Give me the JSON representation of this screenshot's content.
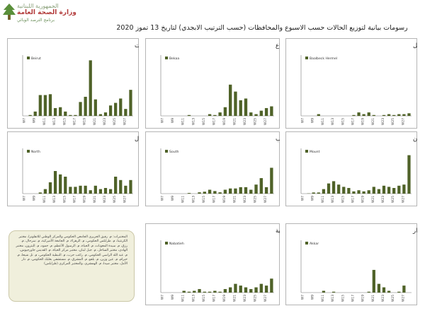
{
  "header": {
    "logo_line1": "الجمهورية اللبنانية",
    "logo_line2": "وزارة الصحة العامة",
    "logo_line3": "برنامج الترصد الوبائي"
  },
  "page_title": "رسومات بيانية لتوزيع الحالات حسب الاسبوع والمحافظات (حسب الترتيب الابجدي) لتاريخ 13 تموز 2020",
  "sources_note": "المختبرات: م. رفيق الحريري الجامعي الحكومي والمركز الوطني للانفلونزا، مختبر الكرنتينا، م. طرابلس الحكومي، م. الزهراء، م. الجامعة الأميركية، م. سرحال، م. رزق، م. سيدة المعونات، م. الحياة، م. الرسول الأعظم، م. حمود، م. البترون، مختبر الهادي، مختبر الساحل، م. جبل لبنان، مختبر مركز الحياة، م. القديس جاورجيوس، م. عبد الله الراسي الحكومي، م. راغب حرب، م. النبطية الحكومي، م. تل شيحا، م. حيرام، م. عين وزين، م. بلفو، م. المشرق، م. مستشفى بعلبك الحكومي، م. دار الأمل، مختبر صيدا، م. الهمشري، والمختبر المركزي (طرابلس)",
  "colors": {
    "bar": "#4f6228",
    "frame": "#b5b5b5"
  },
  "chart_data": [
    {
      "type": "bar",
      "title": "توزيع الحالات حسب الاسبوع في محافظة بيروت",
      "legend": "Beirut",
      "xlabel": "",
      "ylabel": "",
      "categories": [
        "W7",
        "W8",
        "W9",
        "W10",
        "W11",
        "W12",
        "W13",
        "W14",
        "W15",
        "W16",
        "W17",
        "W18",
        "W19",
        "W20",
        "W21",
        "W22",
        "W23",
        "W24",
        "W25",
        "W26",
        "W27",
        "W28"
      ],
      "x_tick_labels": [
        "W7",
        "W9",
        "W11",
        "W13",
        "W15",
        "W17",
        "W19",
        "W21",
        "W23",
        "W25",
        "W27"
      ],
      "ylim": [
        0,
        70
      ],
      "values": [
        0,
        1,
        5,
        24,
        24,
        25,
        9,
        10,
        5,
        1,
        1,
        16,
        22,
        64,
        19,
        2,
        4,
        12,
        15,
        20,
        8,
        30
      ]
    },
    {
      "type": "bar",
      "title": "توزيع الحالات حسب الاسبوع في محافظة البقاع",
      "legend": "Bekaa",
      "xlabel": "",
      "ylabel": "",
      "categories": [
        "W7",
        "W8",
        "W9",
        "W10",
        "W11",
        "W12",
        "W13",
        "W14",
        "W15",
        "W16",
        "W17",
        "W18",
        "W19",
        "W20",
        "W21",
        "W22",
        "W23",
        "W24",
        "W25",
        "W26",
        "W27",
        "W28"
      ],
      "x_tick_labels": [
        "W7",
        "W9",
        "W11",
        "W13",
        "W15",
        "W17",
        "W19",
        "W21",
        "W23",
        "W25",
        "W27"
      ],
      "ylim": [
        0,
        70
      ],
      "values": [
        0,
        0,
        0,
        0,
        0,
        1,
        0,
        0,
        0,
        2,
        1,
        4,
        10,
        36,
        28,
        18,
        20,
        4,
        2,
        6,
        9,
        11
      ]
    },
    {
      "type": "bar",
      "title": "توزيع الحالات حسب الاسبوع في محافظة بعلبك الهرمل",
      "legend": "Baalbeck Hermel",
      "xlabel": "",
      "ylabel": "",
      "categories": [
        "W7",
        "W8",
        "W9",
        "W10",
        "W11",
        "W12",
        "W13",
        "W14",
        "W15",
        "W16",
        "W17",
        "W18",
        "W19",
        "W20",
        "W21",
        "W22",
        "W23",
        "W24",
        "W25",
        "W26",
        "W27",
        "W28"
      ],
      "x_tick_labels": [
        "W7",
        "W9",
        "W11",
        "W13",
        "W15",
        "W17",
        "W19",
        "W21",
        "W23",
        "W25",
        "W27"
      ],
      "ylim": [
        0,
        70
      ],
      "values": [
        0,
        0,
        0,
        2,
        0,
        0,
        0,
        0,
        0,
        0,
        1,
        4,
        2,
        4,
        1,
        0,
        1,
        2,
        1,
        2,
        2,
        3
      ]
    },
    {
      "type": "bar",
      "title": "توزيع الحالات حسب الاسبوع في محافظة الشمال",
      "legend": "North",
      "xlabel": "",
      "ylabel": "",
      "categories": [
        "W7",
        "W8",
        "W9",
        "W10",
        "W11",
        "W12",
        "W13",
        "W14",
        "W15",
        "W16",
        "W17",
        "W18",
        "W19",
        "W20",
        "W21",
        "W22",
        "W23",
        "W24",
        "W25",
        "W26",
        "W27",
        "W28"
      ],
      "x_tick_labels": [
        "W7",
        "W9",
        "W11",
        "W13",
        "W15",
        "W17",
        "W19",
        "W21",
        "W23",
        "W25",
        "W27"
      ],
      "ylim": [
        0,
        80
      ],
      "values": [
        0,
        0,
        0,
        2,
        8,
        20,
        40,
        34,
        30,
        12,
        12,
        14,
        14,
        6,
        14,
        8,
        10,
        8,
        30,
        24,
        14,
        24
      ]
    },
    {
      "type": "bar",
      "title": "توزيع الحالات حسب الاسبوع في محافظة الجنوب",
      "legend": "South",
      "xlabel": "",
      "ylabel": "",
      "categories": [
        "W7",
        "W8",
        "W9",
        "W10",
        "W11",
        "W12",
        "W13",
        "W14",
        "W15",
        "W16",
        "W17",
        "W18",
        "W19",
        "W20",
        "W21",
        "W22",
        "W23",
        "W24",
        "W25",
        "W26",
        "W27",
        "W28"
      ],
      "x_tick_labels": [
        "W7",
        "W9",
        "W11",
        "W13",
        "W15",
        "W17",
        "W19",
        "W21",
        "W23",
        "W25",
        "W27"
      ],
      "ylim": [
        0,
        70
      ],
      "values": [
        0,
        0,
        0,
        0,
        0,
        1,
        0,
        2,
        3,
        6,
        4,
        2,
        6,
        8,
        8,
        10,
        10,
        6,
        14,
        24,
        10,
        40
      ]
    },
    {
      "type": "bar",
      "title": "توزيع الحالات حسب الاسبوع في محافظة جبل لبنان",
      "legend": "Mount",
      "xlabel": "",
      "ylabel": "",
      "categories": [
        "W7",
        "W8",
        "W9",
        "W10",
        "W11",
        "W12",
        "W13",
        "W14",
        "W15",
        "W16",
        "W17",
        "W18",
        "W19",
        "W20",
        "W21",
        "W22",
        "W23",
        "W24",
        "W25",
        "W26",
        "W27",
        "W28"
      ],
      "x_tick_labels": [
        "W7",
        "W9",
        "W11",
        "W13",
        "W15",
        "W17",
        "W19",
        "W21",
        "W23",
        "W25",
        "W27"
      ],
      "ylim": [
        0,
        400
      ],
      "values": [
        0,
        2,
        10,
        10,
        40,
        90,
        110,
        80,
        60,
        50,
        20,
        30,
        20,
        30,
        60,
        40,
        70,
        60,
        50,
        70,
        80,
        340
      ]
    },
    {
      "type": "bar",
      "title": "توزيع الحالات حسب الاسبوع في محافظة النبطية",
      "legend": "Nabatieh",
      "xlabel": "",
      "ylabel": "",
      "categories": [
        "W7",
        "W8",
        "W9",
        "W10",
        "W11",
        "W12",
        "W13",
        "W14",
        "W15",
        "W16",
        "W17",
        "W18",
        "W19",
        "W20",
        "W21",
        "W22",
        "W23",
        "W24",
        "W25",
        "W26",
        "W27",
        "W28"
      ],
      "x_tick_labels": [
        "W7",
        "W9",
        "W11",
        "W13",
        "W15",
        "W17",
        "W19",
        "W21",
        "W23",
        "W25",
        "W27"
      ],
      "ylim": [
        0,
        60
      ],
      "values": [
        0,
        0,
        0,
        0,
        2,
        1,
        2,
        4,
        1,
        1,
        2,
        1,
        4,
        6,
        10,
        8,
        6,
        4,
        6,
        10,
        8,
        16
      ]
    },
    {
      "type": "bar",
      "title": "توزيع الحالات حسب الاسبوع في محافظة عكار",
      "legend": "Akkar",
      "xlabel": "",
      "ylabel": "",
      "categories": [
        "W7",
        "W8",
        "W9",
        "W10",
        "W11",
        "W12",
        "W13",
        "W14",
        "W15",
        "W16",
        "W17",
        "W18",
        "W19",
        "W20",
        "W21",
        "W22",
        "W23",
        "W24",
        "W25",
        "W26",
        "W27",
        "W28"
      ],
      "x_tick_labels": [
        "W7",
        "W9",
        "W11",
        "W13",
        "W15",
        "W17",
        "W19",
        "W21",
        "W23",
        "W25",
        "W27"
      ],
      "ylim": [
        0,
        60
      ],
      "values": [
        0,
        0,
        0,
        0,
        2,
        0,
        1,
        0,
        0,
        0,
        0,
        0,
        0,
        1,
        26,
        10,
        6,
        2,
        0,
        1,
        8,
        0
      ]
    }
  ]
}
